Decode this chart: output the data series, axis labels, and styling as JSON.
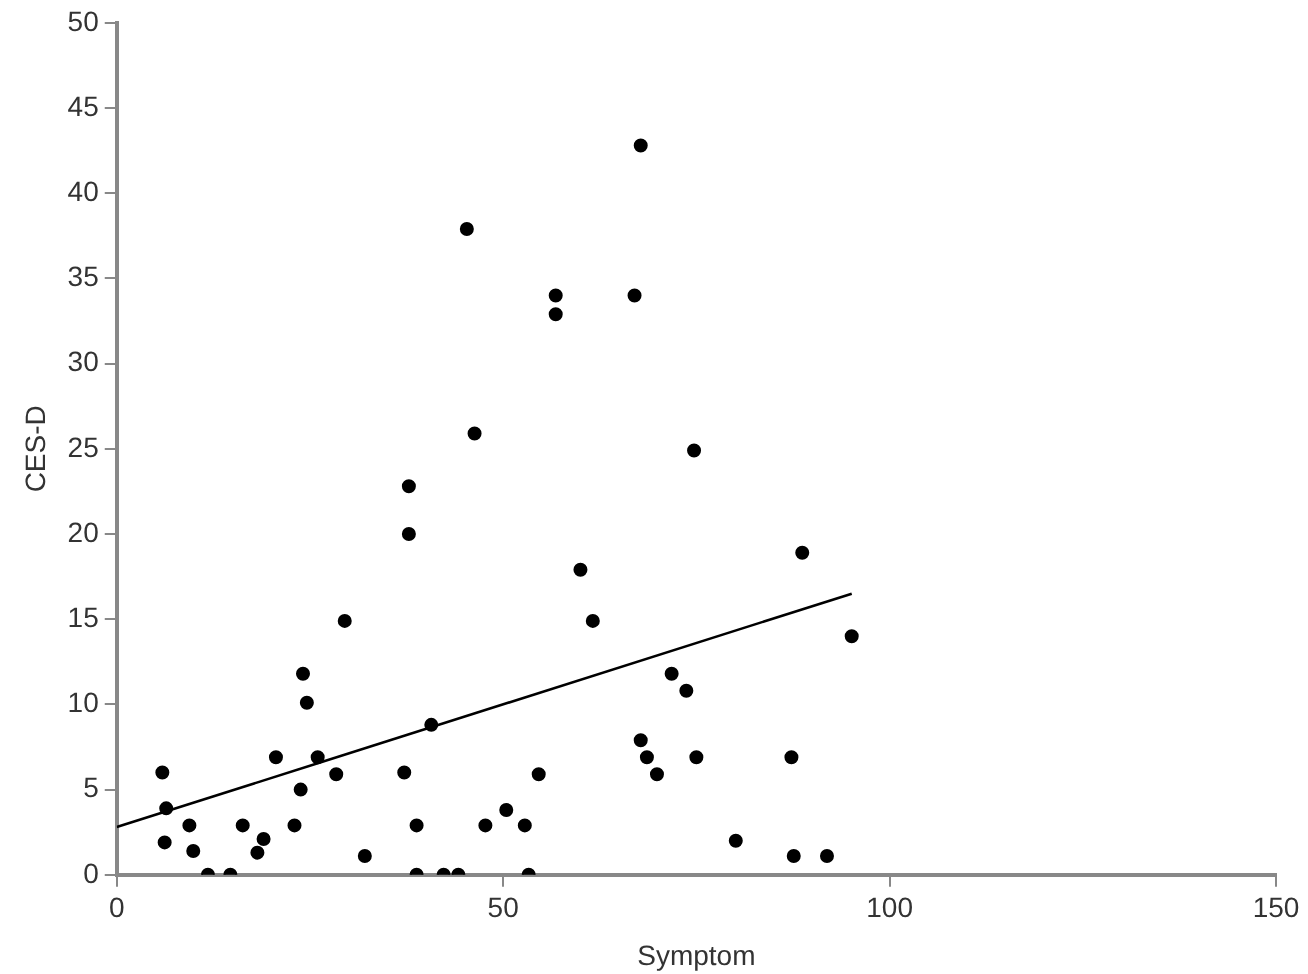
{
  "chart_data": {
    "type": "scatter",
    "xlabel": "Symptom",
    "ylabel": "CES-D",
    "xlim": [
      0,
      150
    ],
    "xticks": [
      0,
      50,
      100,
      150
    ],
    "ylim": [
      0,
      50
    ],
    "yticks": [
      0,
      5,
      10,
      15,
      20,
      25,
      30,
      35,
      40,
      45,
      50
    ],
    "grid": false,
    "legend": false,
    "marker": "circle",
    "series": [
      {
        "color": "#000000",
        "x": [
          5.9,
          6.4,
          6.2,
          9.4,
          9.9,
          11.8,
          14.7,
          16.3,
          18.2,
          19.0,
          20.6,
          23.0,
          23.8,
          24.1,
          24.6,
          26.0,
          28.4,
          29.5,
          32.1,
          37.2,
          37.8,
          37.8,
          38.8,
          38.8,
          40.7,
          42.3,
          44.2,
          45.3,
          46.3,
          47.7,
          50.4,
          52.8,
          53.3,
          54.6,
          56.8,
          56.8,
          60.0,
          61.6,
          67.0,
          67.8,
          67.8,
          68.6,
          69.9,
          71.8,
          73.7,
          74.7,
          75.0,
          80.1,
          87.3,
          87.6,
          88.7,
          91.9,
          95.1
        ],
        "values": [
          6.0,
          3.9,
          1.9,
          2.9,
          1.4,
          0,
          0,
          2.9,
          1.3,
          2.1,
          6.9,
          2.9,
          5.0,
          11.8,
          10.1,
          6.9,
          5.9,
          14.9,
          1.1,
          6.0,
          22.8,
          20.0,
          2.9,
          0,
          8.8,
          0,
          0,
          37.9,
          25.9,
          2.9,
          3.8,
          2.9,
          0,
          5.9,
          34.0,
          32.9,
          17.9,
          14.9,
          34.0,
          42.8,
          7.9,
          6.9,
          5.9,
          11.8,
          10.8,
          24.9,
          6.9,
          2.0,
          6.9,
          1.1,
          18.9,
          1.1,
          14.0
        ]
      },
      {
        "type": "line",
        "color": "#000000",
        "x": [
          0,
          95.1
        ],
        "values": [
          2.8,
          16.5
        ],
        "marker": "none",
        "line_style": "solid"
      }
    ]
  }
}
